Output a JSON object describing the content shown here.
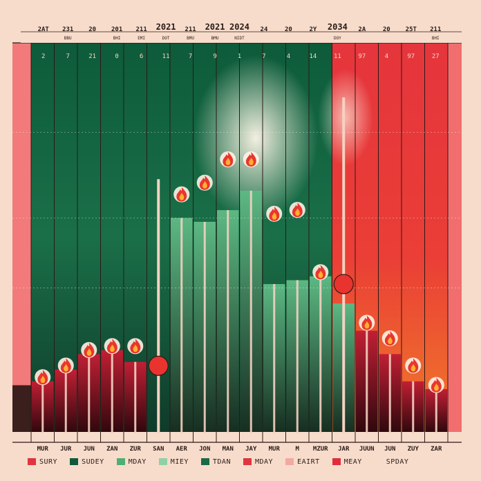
{
  "chart_data": {
    "type": "bar",
    "title": "",
    "xlabel": "",
    "ylabel": "",
    "ylim": [
      0,
      100
    ],
    "grid": true,
    "legend_position": "bottom",
    "top_labels": [
      "2AT",
      "231",
      "20",
      "201",
      "211",
      "2021",
      "211",
      "2021",
      "2024",
      "24",
      "20",
      "2Y",
      "2034",
      "2A",
      "20",
      "25T",
      "211"
    ],
    "top_sublabels": [
      "",
      "BBU",
      "",
      "BHI",
      "EMI",
      "DOT",
      "BMU",
      "BMU",
      "NIDT",
      "",
      "",
      "",
      "DOY",
      "",
      "",
      "",
      "BHI"
    ],
    "header_values": [
      "2",
      "7",
      "21",
      "0",
      "6",
      "11",
      "7",
      "9",
      "1",
      "7",
      "4",
      "14",
      "11",
      "97",
      "4",
      "97",
      "27"
    ],
    "categories": [
      "MUR",
      "JUR",
      "JUN",
      "ZAN",
      "ZUR",
      "SAN",
      "AER",
      "JON",
      "MAN",
      "JAY",
      "MUR",
      "M",
      "MZUR",
      "JAR",
      "JUUN",
      "JUN",
      "ZUY",
      "ZAR"
    ],
    "bars": [
      {
        "color": "#c01f34",
        "value": 13,
        "marker": "flame",
        "marker_value": 13
      },
      {
        "color": "#c01f34",
        "value": 16,
        "marker": "flame",
        "marker_value": 16
      },
      {
        "color": "#c01f34",
        "value": 20,
        "marker": "flame",
        "marker_value": 20
      },
      {
        "color": "#c01f34",
        "value": 21,
        "marker": "flame",
        "marker_value": 21
      },
      {
        "color": "#c01f34",
        "value": 18,
        "marker": "flame",
        "marker_value": 21
      },
      {
        "color": "#f0f0f0",
        "value": 0,
        "marker": "dot",
        "marker_value": 17
      },
      {
        "color": "#5cb883",
        "value": 55,
        "marker": "flame",
        "marker_value": 60
      },
      {
        "color": "#5cb883",
        "value": 54,
        "marker": "flame",
        "marker_value": 63
      },
      {
        "color": "#5cb883",
        "value": 57,
        "marker": "flame",
        "marker_value": 69
      },
      {
        "color": "#5cb883",
        "value": 62,
        "marker": "flame",
        "marker_value": 69
      },
      {
        "color": "#5cb883",
        "value": 38,
        "marker": "flame",
        "marker_value": 55
      },
      {
        "color": "#5cb883",
        "value": 39,
        "marker": "flame",
        "marker_value": 56
      },
      {
        "color": "#5cb883",
        "value": 40,
        "marker": "flame",
        "marker_value": 40
      },
      {
        "color": "#5cb883",
        "value": 33,
        "marker": "dot",
        "marker_value": 38
      },
      {
        "color": "#c01f34",
        "value": 26,
        "marker": "flame",
        "marker_value": 27
      },
      {
        "color": "#c01f34",
        "value": 20,
        "marker": "flame",
        "marker_value": 23
      },
      {
        "color": "#c01f34",
        "value": 13,
        "marker": "flame",
        "marker_value": 16
      },
      {
        "color": "#c01f34",
        "value": 11,
        "marker": "flame",
        "marker_value": 11
      }
    ],
    "legend": [
      {
        "label": "SURY",
        "color": "#e0353e"
      },
      {
        "label": "SUDEY",
        "color": "#0e5a3a"
      },
      {
        "label": "MDAY",
        "color": "#4fae73"
      },
      {
        "label": "MIEY",
        "color": "#8fd1a6"
      },
      {
        "label": "TDAN",
        "color": "#1a6a45"
      },
      {
        "label": "MDAY",
        "color": "#e0353e"
      },
      {
        "label": "EAIRT",
        "color": "#f2a9a3"
      },
      {
        "label": "MEAY",
        "color": "#e32b3c"
      },
      {
        "label": "SPDAY",
        "color": "#f7dccb"
      }
    ]
  }
}
